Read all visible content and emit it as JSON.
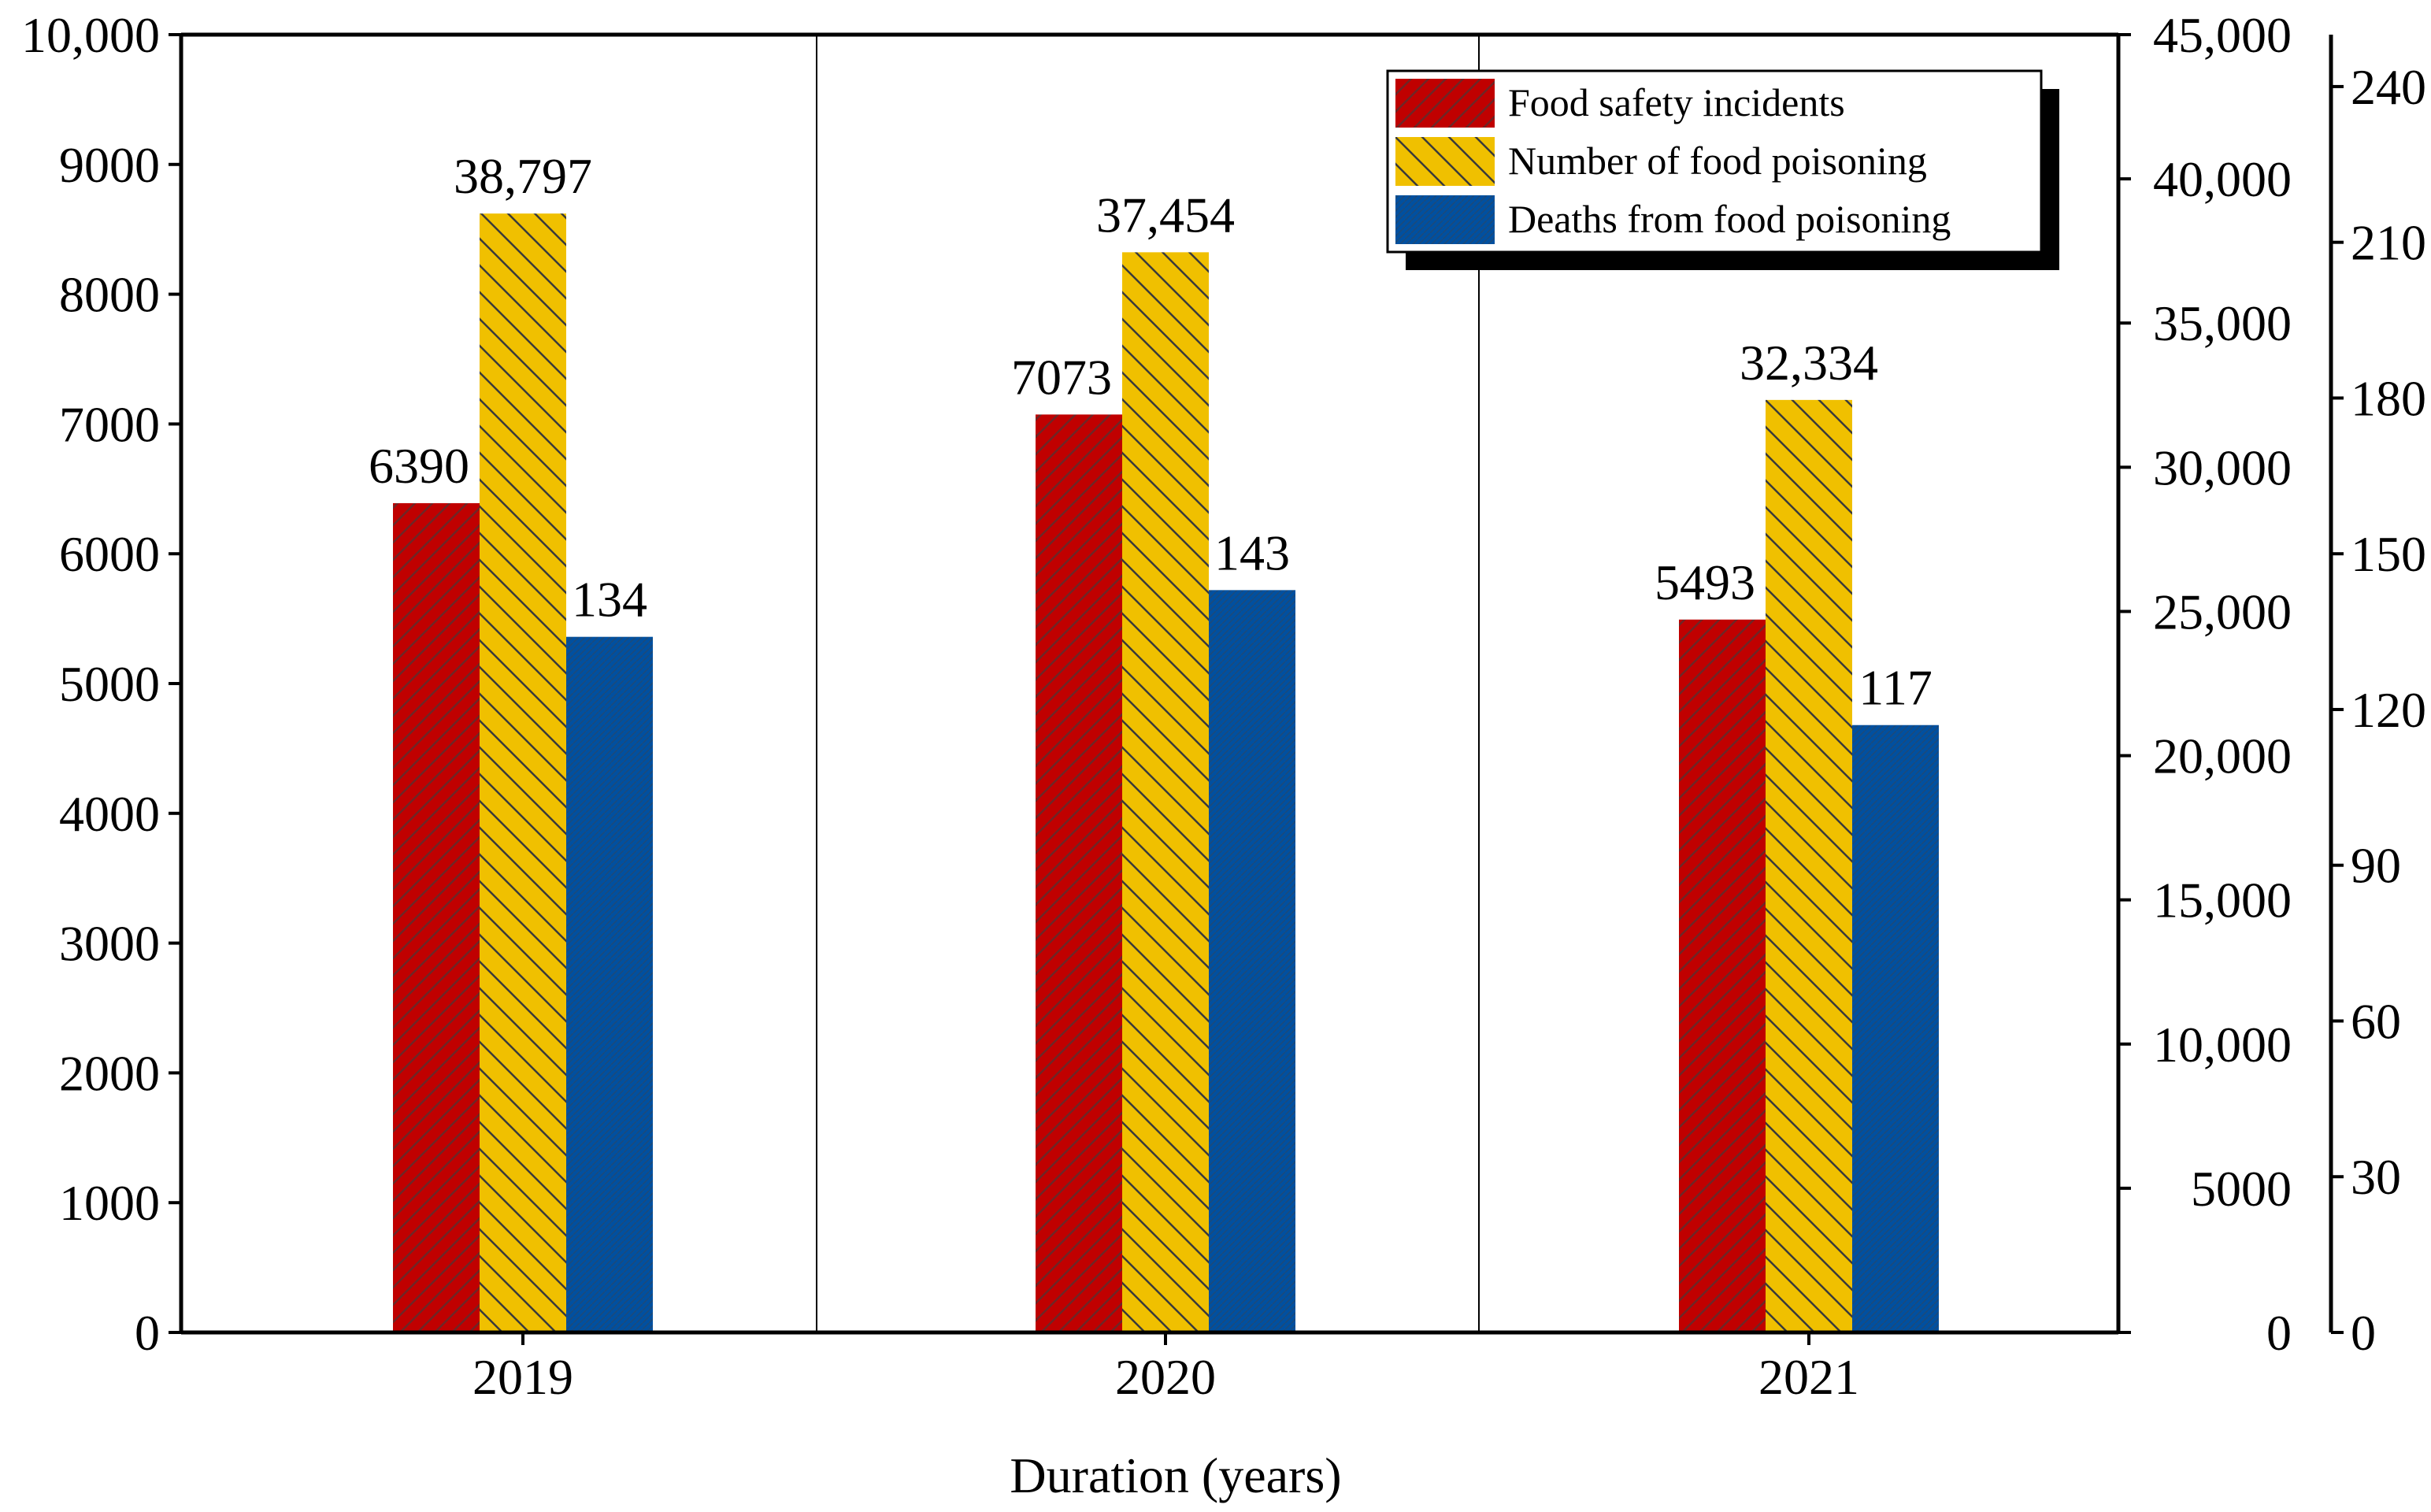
{
  "chart_data": {
    "type": "bar",
    "title": "",
    "xlabel": "Duration (years)",
    "ylabel": "",
    "categories": [
      "2019",
      "2020",
      "2021"
    ],
    "series": [
      {
        "name": "Food safety incidents",
        "axis": "left",
        "values": [
          6390,
          7073,
          5493
        ],
        "labels": [
          "6390",
          "7073",
          "5493"
        ],
        "color": "#c00000",
        "pattern": "forward-diagonal"
      },
      {
        "name": "Number of food poisoning",
        "axis": "middle",
        "values": [
          38797,
          37454,
          32334
        ],
        "labels": [
          "38,797",
          "37,454",
          "32,334"
        ],
        "color": "#f0c000",
        "pattern": "backward-diagonal"
      },
      {
        "name": "Deaths from food poisoning",
        "axis": "right",
        "values": [
          134,
          143,
          117
        ],
        "labels": [
          "134",
          "143",
          "117"
        ],
        "color": "#0050a0",
        "pattern": "fine-dots"
      }
    ],
    "axes": {
      "left": {
        "ylim": [
          0,
          10000
        ],
        "ticks": [
          0,
          1000,
          2000,
          3000,
          4000,
          5000,
          6000,
          7000,
          8000,
          9000,
          10000
        ],
        "tick_labels": [
          "0",
          "1000",
          "2000",
          "3000",
          "4000",
          "5000",
          "6000",
          "7000",
          "8000",
          "9000",
          "10,000"
        ]
      },
      "middle": {
        "ylim": [
          0,
          45000
        ],
        "ticks": [
          0,
          5000,
          10000,
          15000,
          20000,
          25000,
          30000,
          35000,
          40000,
          45000
        ],
        "tick_labels": [
          "0",
          "5000",
          "10,000",
          "15,000",
          "20,000",
          "25,000",
          "30,000",
          "35,000",
          "40,000",
          "45,000"
        ]
      },
      "right": {
        "ylim": [
          0,
          250
        ],
        "ticks": [
          0,
          30,
          60,
          90,
          120,
          150,
          180,
          210,
          240
        ],
        "tick_labels": [
          "0",
          "30",
          "60",
          "90",
          "120",
          "150",
          "180",
          "210",
          "240"
        ]
      }
    },
    "legend": {
      "position": "top-right",
      "entries": [
        "Food safety incidents",
        "Number of food poisoning",
        "Deaths from food poisoning"
      ]
    },
    "grid": false
  }
}
